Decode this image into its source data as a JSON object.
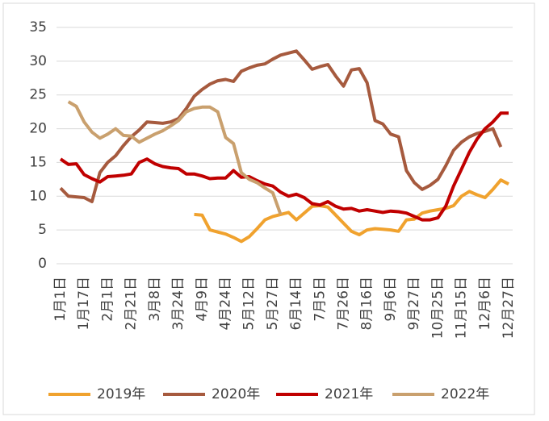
{
  "chart_data": {
    "type": "line",
    "categories": [
      "1月1日",
      null,
      null,
      "1月17日",
      null,
      null,
      "2月1日",
      null,
      null,
      "2月21日",
      null,
      null,
      "3月8日",
      null,
      null,
      "3月24日",
      null,
      null,
      "4月9日",
      null,
      null,
      "4月24日",
      null,
      null,
      "5月12日",
      null,
      null,
      "5月27日",
      null,
      null,
      "6月14日",
      null,
      null,
      "7月5日",
      null,
      null,
      "7月26日",
      null,
      null,
      "8月16日",
      null,
      null,
      "9月6日",
      null,
      null,
      "9月27日",
      null,
      null,
      "10月25日",
      null,
      null,
      "11月15日",
      null,
      null,
      "12月6日",
      null,
      null,
      "12月27日"
    ],
    "series": [
      {
        "name": "2019年",
        "color": "#f0a22e",
        "values": [
          null,
          null,
          null,
          null,
          null,
          null,
          null,
          null,
          null,
          null,
          null,
          null,
          null,
          null,
          null,
          null,
          null,
          7.3,
          7.2,
          5.0,
          4.7,
          4.4,
          3.9,
          3.3,
          4.0,
          5.2,
          6.5,
          7.0,
          7.3,
          7.6,
          6.5,
          7.5,
          8.5,
          8.6,
          8.4,
          7.2,
          6.0,
          4.8,
          4.3,
          5.0,
          5.2,
          5.1,
          5.0,
          4.8,
          6.5,
          6.6,
          7.5,
          7.8,
          8.0,
          8.2,
          8.6,
          10.0,
          10.7,
          10.2,
          9.8,
          11.0,
          12.4,
          11.8
        ]
      },
      {
        "name": "2020年",
        "color": "#a65a3e",
        "values": [
          11.2,
          10.0,
          9.9,
          9.8,
          9.2,
          13.5,
          15.0,
          16.0,
          17.5,
          18.8,
          19.8,
          21.0,
          20.9,
          20.8,
          21.0,
          21.5,
          23.0,
          24.8,
          25.8,
          26.6,
          27.1,
          27.3,
          27.0,
          28.5,
          29.0,
          29.4,
          29.6,
          30.3,
          30.9,
          31.2,
          31.5,
          30.2,
          28.8,
          29.2,
          29.5,
          27.8,
          26.3,
          28.7,
          28.9,
          26.8,
          21.2,
          20.7,
          19.2,
          18.8,
          13.8,
          12.0,
          11.0,
          11.6,
          12.5,
          14.5,
          16.8,
          18.0,
          18.8,
          19.3,
          19.6,
          20.0,
          17.3,
          null
        ]
      },
      {
        "name": "2021年",
        "color": "#c00000",
        "values": [
          15.5,
          14.7,
          14.8,
          13.2,
          12.6,
          12.1,
          12.9,
          13.0,
          13.1,
          13.3,
          15.0,
          15.5,
          14.8,
          14.4,
          14.2,
          14.1,
          13.3,
          13.3,
          13.0,
          12.6,
          12.7,
          12.7,
          13.8,
          12.8,
          12.9,
          12.3,
          11.8,
          11.5,
          10.6,
          10.0,
          10.3,
          9.8,
          8.9,
          8.7,
          9.2,
          8.5,
          8.1,
          8.2,
          7.8,
          8.0,
          7.8,
          7.6,
          7.8,
          7.7,
          7.5,
          7.0,
          6.5,
          6.5,
          6.8,
          8.5,
          11.5,
          14.0,
          16.5,
          18.5,
          20.0,
          21.0,
          22.3,
          22.3
        ]
      },
      {
        "name": "2022年",
        "color": "#c9a06e",
        "values": [
          null,
          24.0,
          23.3,
          21.0,
          19.5,
          18.6,
          19.2,
          20.0,
          19.0,
          18.9,
          18.0,
          18.6,
          19.2,
          19.7,
          20.4,
          21.2,
          22.5,
          23.0,
          23.2,
          23.2,
          22.5,
          18.7,
          17.8,
          13.5,
          12.5,
          12.0,
          11.2,
          10.5,
          7.3,
          null,
          null,
          null,
          null,
          null,
          null,
          null,
          null,
          null,
          null,
          null,
          null,
          null,
          null,
          null,
          null,
          null,
          null,
          null,
          null,
          null,
          null,
          null,
          null,
          null,
          null,
          null,
          null,
          null
        ]
      }
    ],
    "ylim": [
      0,
      35
    ],
    "yticks": [
      0,
      5,
      10,
      15,
      20,
      25,
      30,
      35
    ],
    "grid": true,
    "legend": "bottom"
  }
}
